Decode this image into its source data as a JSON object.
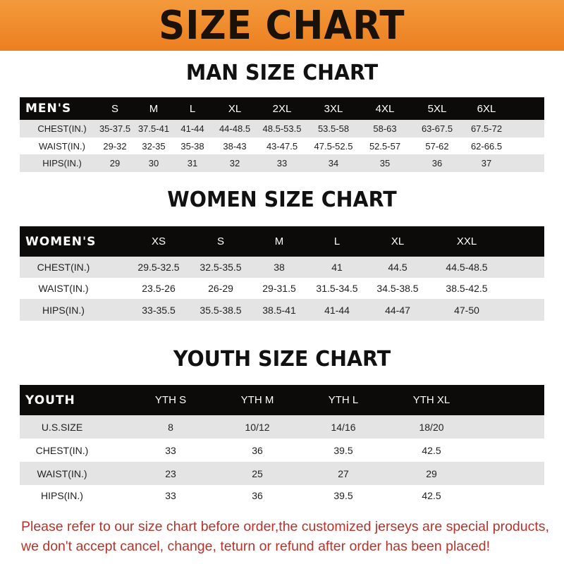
{
  "banner": {
    "title": "SIZE CHART",
    "color": "#ee8a2c"
  },
  "men": {
    "title": "MAN SIZE CHART",
    "header": [
      "MEN'S",
      "S",
      "M",
      "L",
      "XL",
      "2XL",
      "3XL",
      "4XL",
      "5XL",
      "6XL"
    ],
    "rows": [
      [
        "CHEST(IN.)",
        "35-37.5",
        "37.5-41",
        "41-44",
        "44-48.5",
        "48.5-53.5",
        "53.5-58",
        "58-63",
        "63-67.5",
        "67.5-72"
      ],
      [
        "WAIST(IN.)",
        "29-32",
        "32-35",
        "35-38",
        "38-43",
        "43-47.5",
        "47.5-52.5",
        "52.5-57",
        "57-62",
        "62-66.5"
      ],
      [
        "HIPS(IN.)",
        "29",
        "30",
        "31",
        "32",
        "33",
        "34",
        "35",
        "36",
        "37"
      ]
    ]
  },
  "women": {
    "title": "WOMEN SIZE CHART",
    "header": [
      "WOMEN'S",
      "XS",
      "S",
      "M",
      "L",
      "XL",
      "XXL"
    ],
    "rows": [
      [
        "CHEST(IN.)",
        "29.5-32.5",
        "32.5-35.5",
        "38",
        "41",
        "44.5",
        "44.5-48.5"
      ],
      [
        "WAIST(IN.)",
        "23.5-26",
        "26-29",
        "29-31.5",
        "31.5-34.5",
        "34.5-38.5",
        "38.5-42.5"
      ],
      [
        "HIPS(IN.)",
        "33-35.5",
        "35.5-38.5",
        "38.5-41",
        "41-44",
        "44-47",
        "47-50"
      ]
    ]
  },
  "youth": {
    "title": "YOUTH SIZE CHART",
    "header": [
      "YOUTH",
      "YTH S",
      "YTH M",
      "YTH L",
      "YTH XL"
    ],
    "rows": [
      [
        "U.S.SIZE",
        "8",
        "10/12",
        "14/16",
        "18/20"
      ],
      [
        "CHEST(IN.)",
        "33",
        "36",
        "39.5",
        "42.5"
      ],
      [
        "WAIST(IN.)",
        "23",
        "25",
        "27",
        "29"
      ],
      [
        "HIPS(IN.)",
        "33",
        "36",
        "39.5",
        "42.5"
      ]
    ]
  },
  "note": {
    "line1": "Please refer to our size chart before order,the customized jerseys are special products,",
    "line2": "we don't accept cancel, change, teturn or refund after order has been placed!",
    "color": "#b8322a"
  }
}
